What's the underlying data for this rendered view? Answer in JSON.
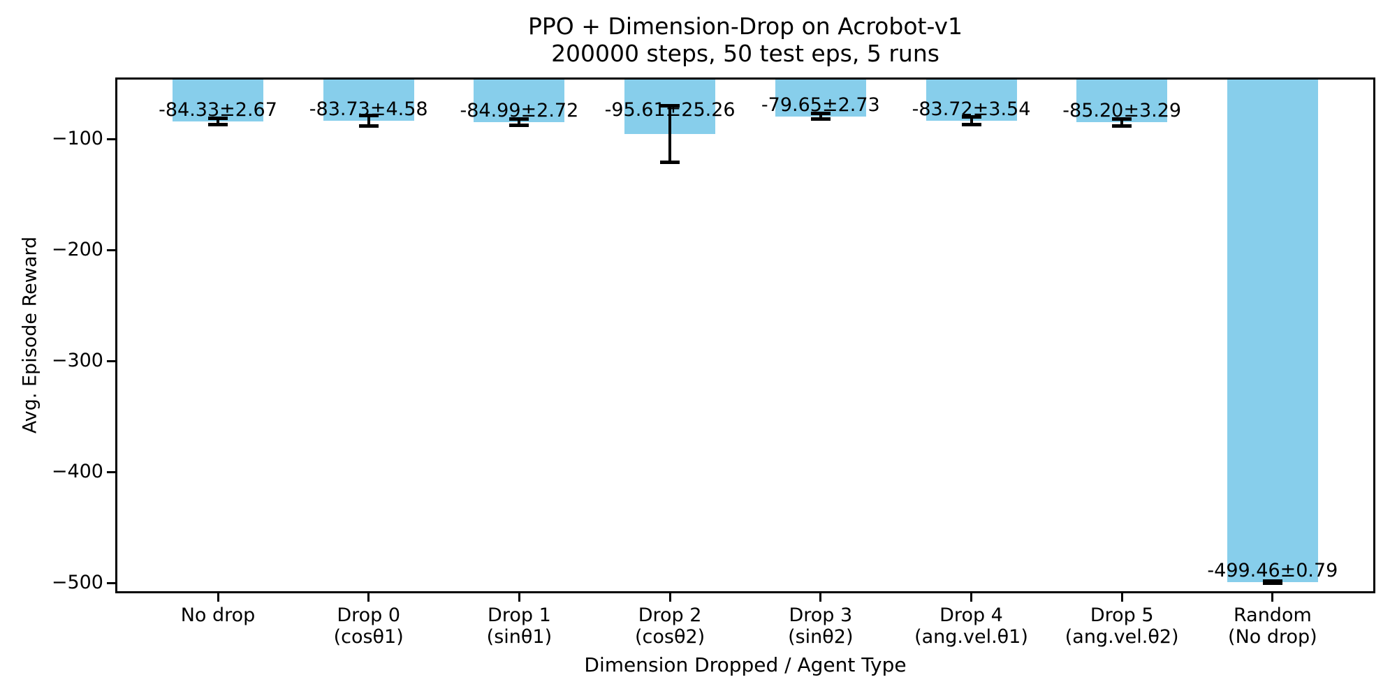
{
  "chart_data": {
    "type": "bar",
    "title": "PPO + Dimension-Drop on Acrobot-v1",
    "subtitle": "200000 steps, 50 test eps, 5 runs",
    "xlabel": "Dimension Dropped / Agent Type",
    "ylabel": "Avg. Episode Reward",
    "categories": [
      [
        "No drop"
      ],
      [
        "Drop 0",
        "(cosθ1)"
      ],
      [
        "Drop 1",
        "(sinθ1)"
      ],
      [
        "Drop 2",
        "(cosθ2)"
      ],
      [
        "Drop 3",
        "(sinθ2)"
      ],
      [
        "Drop 4",
        "(ang.vel.θ1)"
      ],
      [
        "Drop 5",
        "(ang.vel.θ2)"
      ],
      [
        "Random",
        "(No drop)"
      ]
    ],
    "values": [
      -84.33,
      -83.73,
      -84.99,
      -95.61,
      -79.65,
      -83.72,
      -85.2,
      -499.46
    ],
    "errors": [
      2.67,
      4.58,
      2.72,
      25.26,
      2.73,
      3.54,
      3.29,
      0.79
    ],
    "bar_labels": [
      "-84.33±2.67",
      "-83.73±4.58",
      "-84.99±2.72",
      "-95.61±25.26",
      "-79.65±2.73",
      "-83.72±3.54",
      "-85.20±3.29",
      "-499.46±0.79"
    ],
    "yticks": [
      {
        "value": -100,
        "label": "−100"
      },
      {
        "value": -200,
        "label": "−200"
      },
      {
        "value": -300,
        "label": "−300"
      },
      {
        "value": -400,
        "label": "−400"
      },
      {
        "value": -500,
        "label": "−500"
      }
    ],
    "ylim": [
      -509.4,
      -44.65
    ],
    "bars_start_at": 0,
    "grid": false,
    "legend_position": "none",
    "bar_color": "#87CEEB",
    "error_color": "#000000",
    "text_color": "#000000",
    "axis_color": "#000000",
    "background_color": "#ffffff"
  }
}
